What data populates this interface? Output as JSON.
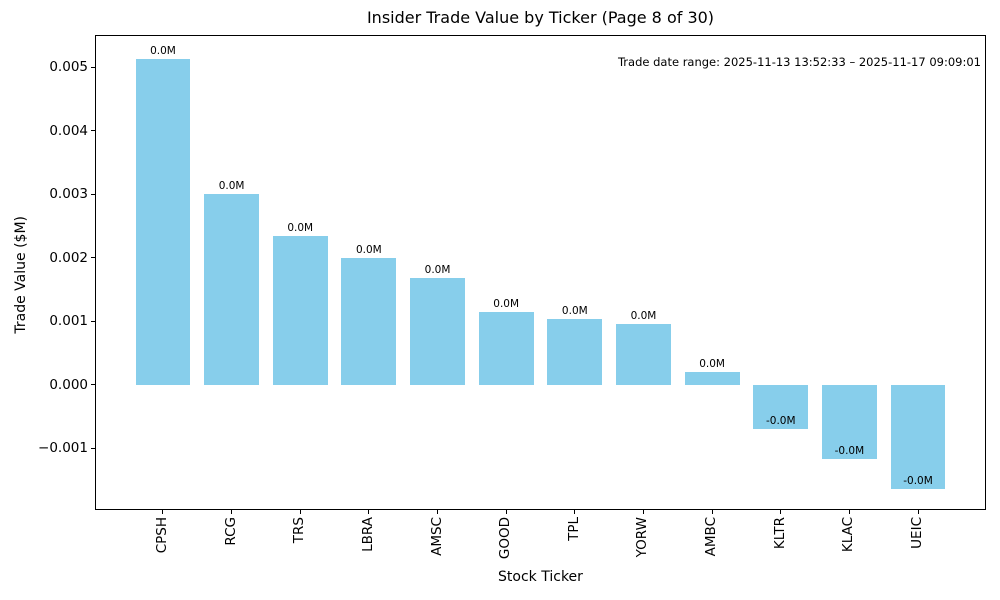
{
  "chart_data": {
    "type": "bar",
    "title": "Insider Trade Value by Ticker (Page 8 of 30)",
    "annotation": "Trade date range: 2025-11-13 13:52:33 – 2025-11-17 09:09:01",
    "xlabel": "Stock Ticker",
    "ylabel": "Trade Value ($M)",
    "categories": [
      "CPSH",
      "RCG",
      "TRS",
      "LBRA",
      "AMSC",
      "GOOD",
      "TPL",
      "YORW",
      "AMBC",
      "KLTR",
      "KLAC",
      "UEIC"
    ],
    "values": [
      0.00512,
      0.003,
      0.00234,
      0.002,
      0.00167,
      0.00114,
      0.00103,
      0.00096,
      0.0002,
      -0.0007,
      -0.00118,
      -0.00165
    ],
    "bar_labels": [
      "0.0M",
      "0.0M",
      "0.0M",
      "0.0M",
      "0.0M",
      "0.0M",
      "0.0M",
      "0.0M",
      "0.0M",
      "-0.0M",
      "-0.0M",
      "-0.0M"
    ],
    "bar_color": "#87CEEB",
    "background_color": "#FFFFFF",
    "spine_color": "#000000",
    "ylim": [
      -0.001976,
      0.005504
    ],
    "xlim": [
      -0.99,
      11.99
    ],
    "bar_width_fraction": 0.8,
    "yticks": [
      0.005,
      0.004,
      0.003,
      0.002,
      0.001,
      0.0,
      -0.001
    ],
    "ytick_labels": [
      "0.005",
      "0.004",
      "0.003",
      "0.002",
      "0.001",
      "0.000",
      "−0.001"
    ],
    "grid": false,
    "legend": "none"
  }
}
